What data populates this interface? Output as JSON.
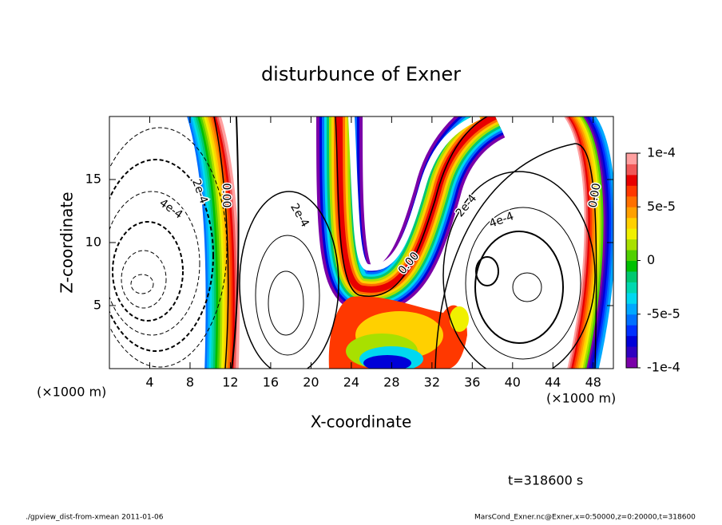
{
  "chart_data": {
    "type": "contour",
    "title": "disturbunce of Exner",
    "x_label": "X-coordinate",
    "y_label": "Z-coordinate",
    "x_unit": "(×1000 m)",
    "x_unit_right": "(×1000 m)",
    "xlim": [
      0,
      50
    ],
    "ylim": [
      0,
      20
    ],
    "xticks": [
      4,
      8,
      12,
      16,
      20,
      24,
      28,
      32,
      36,
      40,
      44,
      48
    ],
    "yticks": [
      5,
      10,
      15
    ],
    "colorbar": {
      "lim": [
        -0.0001,
        0.0001
      ],
      "ticks": [
        {
          "value": 0.0001,
          "label": "1e-4"
        },
        {
          "value": 5e-05,
          "label": "5e-5"
        },
        {
          "value": 0,
          "label": "0"
        },
        {
          "value": -5e-05,
          "label": "-5e-5"
        },
        {
          "value": -0.0001,
          "label": "-1e-4"
        }
      ],
      "colors": [
        "#7a00a8",
        "#3000c0",
        "#0000d8",
        "#0030ff",
        "#0070ff",
        "#00a8ff",
        "#00d8f0",
        "#00d8b0",
        "#00c870",
        "#00c000",
        "#50d000",
        "#a8e000",
        "#f0f000",
        "#ffd000",
        "#ffa000",
        "#ff7000",
        "#ff3800",
        "#e80000",
        "#f05858",
        "#ffa0a0"
      ]
    },
    "contour_labels": [
      "2e-4",
      "4e-4",
      "0.00",
      "2e-4",
      "0.00",
      "2e-4",
      "4e-4",
      "0.00"
    ],
    "time_label": "t=318600 s",
    "footer_left": "./gpview_dist-from-xmean  2011-01-06",
    "footer_right": "MarsCond_Exner.nc@Exner,x=0:50000,z=0:20000,t=318600"
  }
}
